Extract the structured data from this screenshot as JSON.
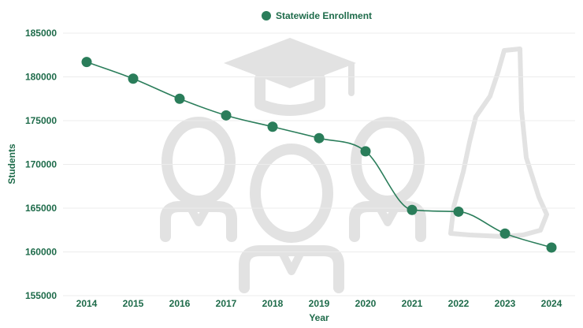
{
  "chart_data": {
    "type": "line",
    "x": [
      "2014",
      "2015",
      "2016",
      "2017",
      "2018",
      "2019",
      "2020",
      "2021",
      "2022",
      "2023",
      "2024"
    ],
    "series": [
      {
        "name": "Statewide Enrollment",
        "values": [
          181700,
          179800,
          177500,
          175600,
          174300,
          173000,
          171500,
          164800,
          164600,
          162100,
          160500
        ],
        "color": "#2a7d5a"
      }
    ],
    "xlabel": "Year",
    "ylabel": "Students",
    "ylim": [
      155000,
      185000
    ],
    "yticks": [
      "155000",
      "160000",
      "165000",
      "170000",
      "175000",
      "180000",
      "185000"
    ],
    "legend_position": "top",
    "grid": true,
    "text_color": "#1e6b4a",
    "background_icons": [
      "graduation-cap-icon",
      "students-icon",
      "new-hampshire-map-icon"
    ]
  }
}
